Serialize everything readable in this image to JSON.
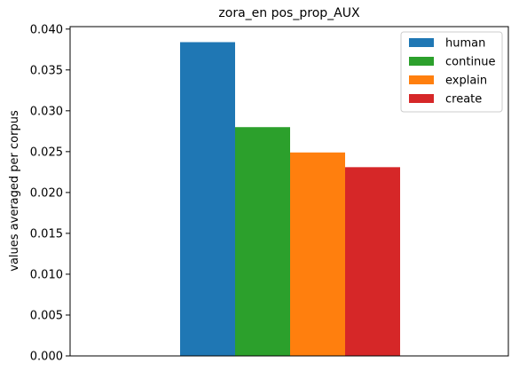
{
  "chart_data": {
    "type": "bar",
    "title": "zora_en pos_prop_AUX",
    "xlabel": "",
    "ylabel": "values averaged per corpus",
    "ylim": [
      0,
      0.0403
    ],
    "yticks": [
      "0.000",
      "0.005",
      "0.010",
      "0.015",
      "0.020",
      "0.025",
      "0.030",
      "0.035",
      "0.040"
    ],
    "grid": false,
    "legend_position": "top-right",
    "series": [
      {
        "name": "human",
        "value": 0.0384,
        "color": "#1f77b4"
      },
      {
        "name": "continue",
        "value": 0.028,
        "color": "#2ca02c"
      },
      {
        "name": "explain",
        "value": 0.0249,
        "color": "#ff7f0e"
      },
      {
        "name": "create",
        "value": 0.0231,
        "color": "#d62728"
      }
    ]
  }
}
